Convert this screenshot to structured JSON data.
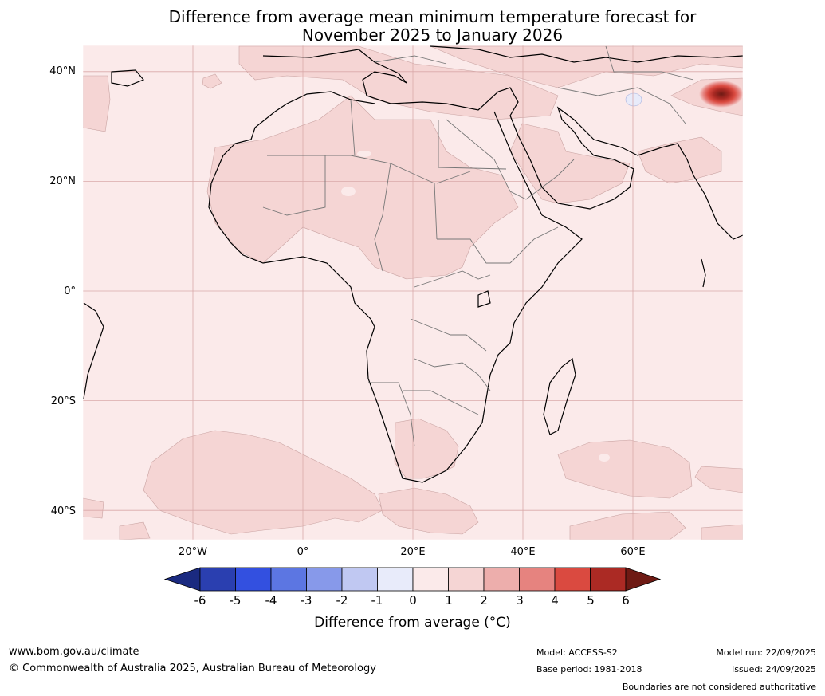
{
  "title": {
    "line1": "Difference from average mean minimum temperature forecast for",
    "line2": "November 2025 to January 2026"
  },
  "map": {
    "latitude_labels": [
      "40°N",
      "20°N",
      "0°",
      "20°S",
      "40°S"
    ],
    "latitudes": [
      40,
      20,
      0,
      -20,
      -40
    ],
    "longitude_labels": [
      "20°W",
      "0°",
      "20°E",
      "40°E",
      "60°E"
    ],
    "longitudes": [
      -20,
      0,
      20,
      40,
      60
    ],
    "extent": {
      "lon_min": -40,
      "lon_max": 80,
      "lat_min": -45,
      "lat_max": 45
    },
    "background_category": "0 to 1",
    "hotspot": {
      "location": "Tibetan Plateau / Himalaya",
      "max_category": "above 6"
    }
  },
  "colorbar": {
    "ticks": [
      "-6",
      "-5",
      "-4",
      "-3",
      "-2",
      "-1",
      "0",
      "1",
      "2",
      "3",
      "4",
      "5",
      "6"
    ],
    "colors": {
      "below_-6": "#1a2a80",
      "-6_-5": "#2a3fb0",
      "-5_-4": "#3350e0",
      "-4_-3": "#5c76e2",
      "-3_-2": "#8799ea",
      "-2_-1": "#c0c8f2",
      "-1_0": "#e8ebfa",
      "0_1": "#fbeaea",
      "1_2": "#f5d5d4",
      "2_3": "#edaeac",
      "3_4": "#e6837f",
      "4_5": "#da4a40",
      "5_6": "#ab2a24",
      "above_6": "#6e1a14"
    },
    "label": "Difference from average (°C)"
  },
  "footer": {
    "website": "www.bom.gov.au/climate",
    "copyright": "© Commonwealth of Australia 2025, Australian Bureau of Meteorology",
    "model": "Model: ACCESS-S2",
    "base_period": "Base period: 1981-2018",
    "model_run": "Model run: 22/09/2025",
    "issued": "Issued: 24/09/2025",
    "disclaimer": "Boundaries are not considered authoritative"
  }
}
